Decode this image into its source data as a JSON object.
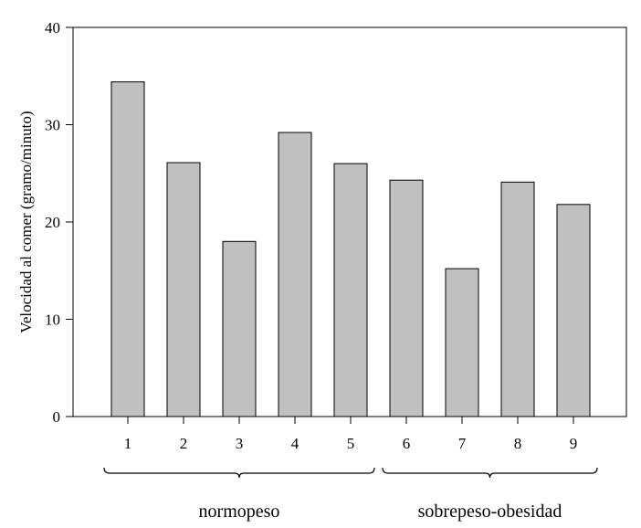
{
  "chart_data": {
    "type": "bar",
    "categories": [
      "1",
      "2",
      "3",
      "4",
      "5",
      "6",
      "7",
      "8",
      "9"
    ],
    "values": [
      34.4,
      26.1,
      18.0,
      29.2,
      26.0,
      24.3,
      15.2,
      24.1,
      21.8
    ],
    "ylabel": "Velocidad al comer (gramo/minuto)",
    "xlabel": "",
    "ylim": [
      0,
      40
    ],
    "yticks": [
      0,
      10,
      20,
      30,
      40
    ],
    "groups": [
      {
        "label": "normopeso",
        "categories": [
          "1",
          "2",
          "3",
          "4",
          "5"
        ]
      },
      {
        "label": "sobrepeso-obesidad",
        "categories": [
          "6",
          "7",
          "8",
          "9"
        ]
      }
    ],
    "grid": false,
    "bar_color": "#c0c0c0",
    "edge_color": "#000000"
  }
}
